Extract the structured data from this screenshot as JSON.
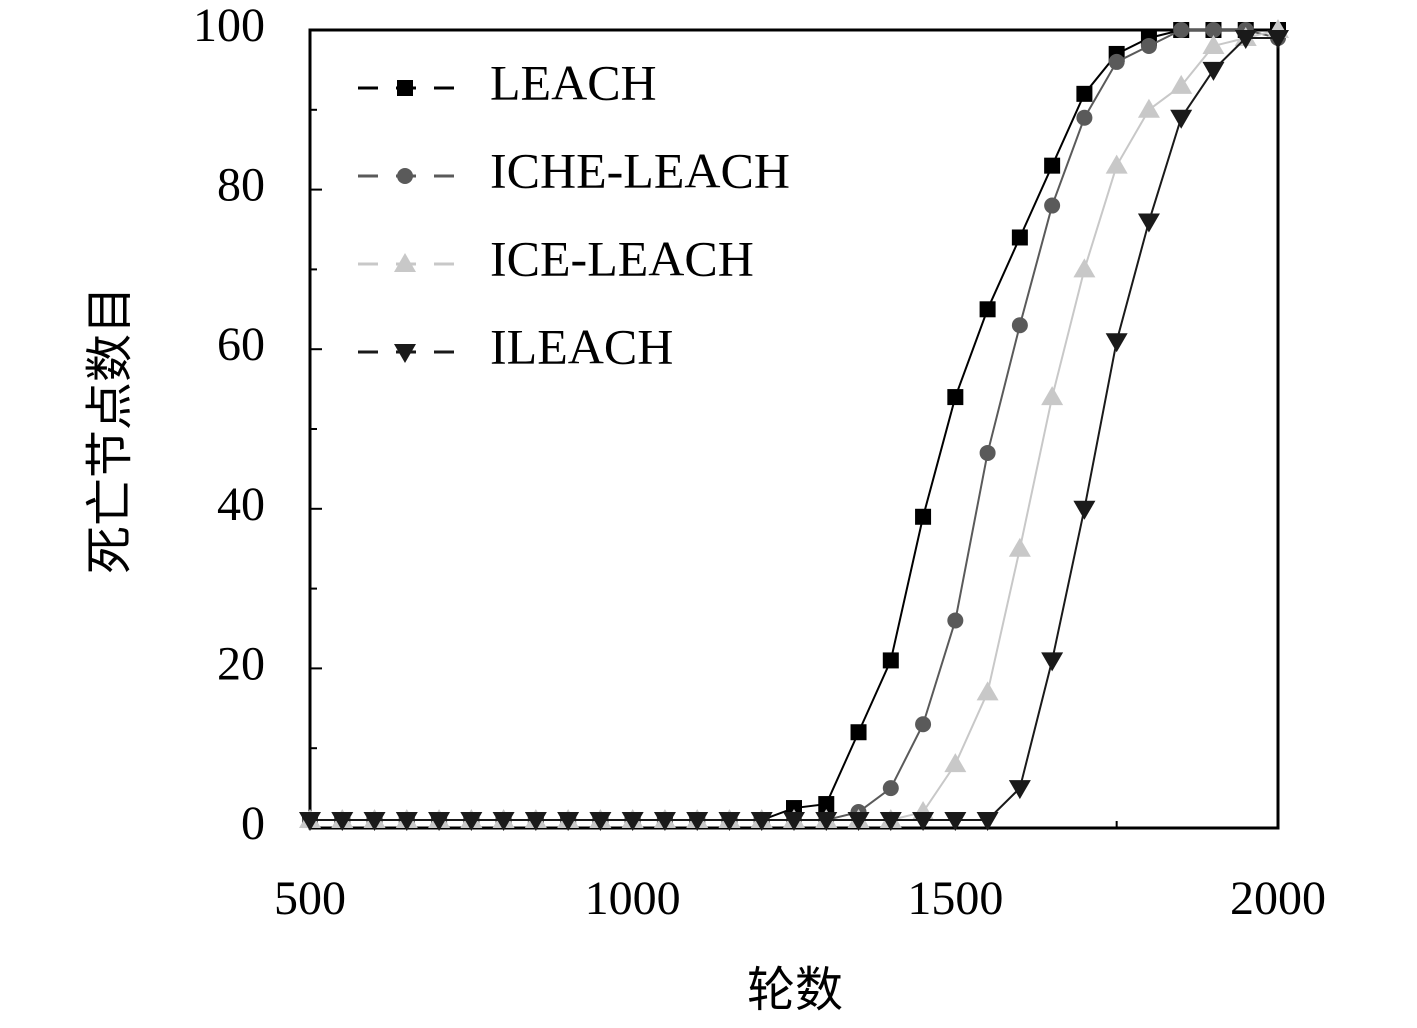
{
  "chart_data": {
    "type": "line",
    "xlabel": "轮数",
    "ylabel": "死亡节点数目",
    "x": [
      500,
      550,
      600,
      650,
      700,
      750,
      800,
      850,
      900,
      950,
      1000,
      1050,
      1100,
      1150,
      1200,
      1250,
      1300,
      1350,
      1400,
      1450,
      1500,
      1550,
      1600,
      1650,
      1700,
      1750,
      1800,
      1850,
      1900,
      1950,
      2000
    ],
    "series": [
      {
        "name": "LEACH",
        "color": "#000000",
        "marker": "square",
        "values": [
          1,
          1,
          1,
          1,
          1,
          1,
          1,
          1,
          1,
          1,
          1,
          1,
          1,
          1,
          1,
          2.5,
          3,
          12,
          21,
          39,
          54,
          65,
          74,
          83,
          92,
          97,
          99,
          100,
          100,
          100,
          100
        ]
      },
      {
        "name": "ICHE-LEACH",
        "color": "#5a5a5a",
        "marker": "circle",
        "values": [
          1,
          1,
          1,
          1,
          1,
          1,
          1,
          1,
          1,
          1,
          1,
          1,
          1,
          1,
          1,
          1,
          1,
          2,
          5,
          13,
          26,
          47,
          63,
          78,
          89,
          96,
          98,
          100,
          100,
          100,
          99
        ]
      },
      {
        "name": "ICE-LEACH",
        "color": "#c8c8c8",
        "marker": "triangle-up",
        "values": [
          1,
          1,
          1,
          1,
          1,
          1,
          1,
          1,
          1,
          1,
          1,
          1,
          1,
          1,
          1,
          1,
          1,
          1,
          1,
          2,
          8,
          17,
          35,
          54,
          70,
          83,
          90,
          93,
          98,
          99,
          100
        ]
      },
      {
        "name": "ILEACH",
        "color": "#1a1a1a",
        "marker": "triangle-down",
        "values": [
          1,
          1,
          1,
          1,
          1,
          1,
          1,
          1,
          1,
          1,
          1,
          1,
          1,
          1,
          1,
          1,
          1,
          1,
          1,
          1,
          1,
          1,
          5,
          21,
          40,
          61,
          76,
          89,
          95,
          99,
          99
        ]
      }
    ],
    "xlim": [
      500,
      2000
    ],
    "xticks": [
      500,
      1000,
      1500,
      2000
    ],
    "xminor": [
      750,
      1250,
      1750
    ],
    "ylim": [
      0,
      100
    ],
    "yticks": [
      0,
      20,
      40,
      60,
      80,
      100
    ],
    "yminor": [
      10,
      30,
      50,
      70,
      90
    ],
    "legend": "upper-left",
    "grid": false
  }
}
